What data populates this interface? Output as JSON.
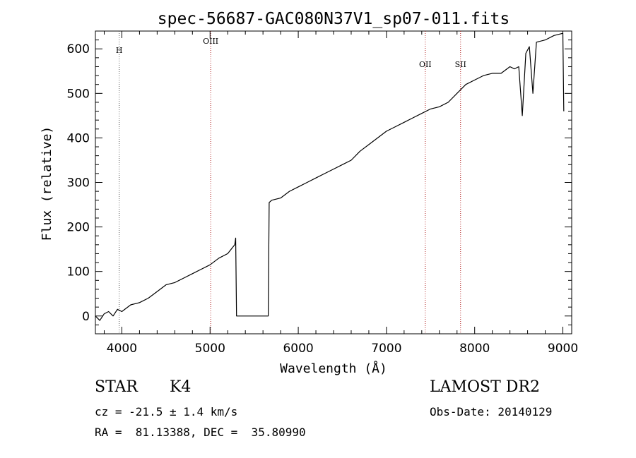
{
  "chart_data": {
    "type": "line",
    "title": "spec-56687-GAC080N37V1_sp07-011.fits",
    "xlabel": "Wavelength (Å)",
    "ylabel": "Flux (relative)",
    "xlim": [
      3700,
      9100
    ],
    "ylim": [
      -40,
      640
    ],
    "xticks": [
      4000,
      5000,
      6000,
      7000,
      8000,
      9000
    ],
    "yticks": [
      0,
      100,
      200,
      300,
      400,
      500,
      600
    ],
    "grid": false,
    "series": [
      {
        "x": [
          3700,
          3750,
          3800,
          3850,
          3900,
          3950,
          4000,
          4100,
          4200,
          4300,
          4400,
          4500,
          4600,
          4700,
          4800,
          4900,
          5000,
          5100,
          5200,
          5280,
          5290,
          5300,
          5660,
          5670,
          5700,
          5800,
          5900,
          6000,
          6100,
          6200,
          6300,
          6400,
          6500,
          6600,
          6700,
          6800,
          6900,
          7000,
          7100,
          7200,
          7300,
          7400,
          7500,
          7600,
          7700,
          7800,
          7900,
          8000,
          8100,
          8200,
          8300,
          8400,
          8450,
          8500,
          8540,
          8580,
          8620,
          8660,
          8700,
          8800,
          8900,
          9000,
          9010
        ],
        "y": [
          0,
          -10,
          5,
          10,
          0,
          15,
          10,
          25,
          30,
          40,
          55,
          70,
          75,
          85,
          95,
          105,
          115,
          130,
          140,
          160,
          175,
          0,
          0,
          255,
          260,
          265,
          280,
          290,
          300,
          310,
          320,
          330,
          340,
          350,
          370,
          385,
          400,
          415,
          425,
          435,
          445,
          455,
          465,
          470,
          480,
          500,
          520,
          530,
          540,
          545,
          545,
          560,
          555,
          560,
          450,
          590,
          605,
          500,
          615,
          620,
          630,
          635,
          460
        ]
      }
    ],
    "annotations": [
      {
        "text": "H",
        "x": 3970
      },
      {
        "text": "OIII",
        "x": 5007
      },
      {
        "text": "OII",
        "x": 7440
      },
      {
        "text": "SII",
        "x": 7840
      }
    ],
    "line_colors": {
      "spectrum": "#000000",
      "marker_line": "#b22222",
      "marker_line_dark": "#555555"
    }
  },
  "info": {
    "object_class": "STAR",
    "subclass": "K4",
    "survey": "LAMOST DR2",
    "redshift_text": "cz = -21.5 ± 1.4 km/s",
    "obs_date_text": "Obs-Date: 20140129",
    "coords_text": "RA =  81.13388, DEC =  35.80990"
  }
}
